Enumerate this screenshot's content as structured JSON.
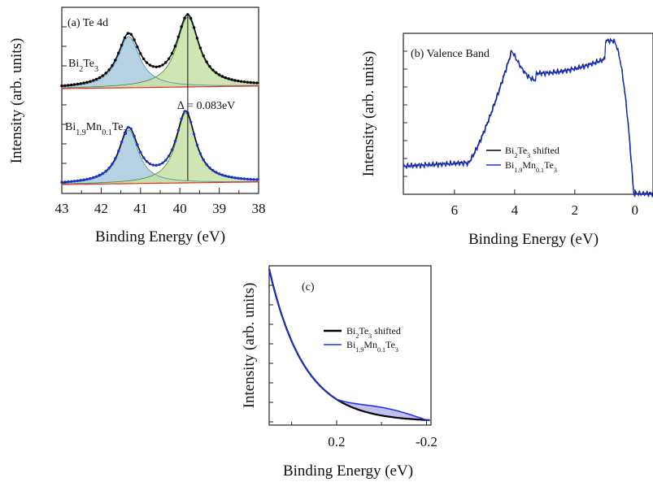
{
  "chart_data": [
    {
      "type": "line",
      "panel_label": "(a) Te 4d",
      "xlabel": "Binding Energy (eV)",
      "ylabel": "Intensity (arb. units)",
      "x_reversed": true,
      "xlim": [
        43,
        38
      ],
      "xticks": [
        "43",
        "42",
        "41",
        "40",
        "39",
        "38"
      ],
      "annotation": "∆ = 0.083eV",
      "series": [
        {
          "name": "Bi2Te3",
          "label_html": "Bi<tspan baseline-shift='sub' font-size='10'>2</tspan>Te<tspan baseline-shift='sub' font-size='10'>3</tspan>",
          "peaks": [
            41.3,
            39.8
          ],
          "color": "#000000"
        },
        {
          "name": "Bi1.9Mn0.1Te3",
          "label_html": "Bi<tspan baseline-shift='sub' font-size='10'>1.9</tspan>Mn<tspan baseline-shift='sub' font-size='10'>0.1</tspan>Te<tspan baseline-shift='sub' font-size='10'>3</tspan>",
          "peaks": [
            41.3,
            39.85
          ],
          "color": "#1a35e0"
        }
      ],
      "fill_colors": [
        "#a9c9dd",
        "#c9e0a5"
      ]
    },
    {
      "type": "line",
      "panel_label": "(b) Valence Band",
      "xlabel": "Binding Energy (eV)",
      "ylabel": "Intensity (arb. units)",
      "x_reversed": true,
      "xlim": [
        7.7,
        -0.6
      ],
      "xticks": [
        "6",
        "4",
        "2",
        "0"
      ],
      "legend": [
        {
          "name": "Bi2Te3 shifted",
          "label_html": "Bi<tspan baseline-shift='sub' font-size='8'>2</tspan>Te<tspan baseline-shift='sub' font-size='8'>3</tspan> shifted",
          "color": "#000000"
        },
        {
          "name": "Bi1.9Mn0.1Te3",
          "label_html": "Bi<tspan baseline-shift='sub' font-size='8'>1.9</tspan>Mn<tspan baseline-shift='sub' font-size='8'>0.1</tspan>Te<tspan baseline-shift='sub' font-size='8'>3</tspan>",
          "color": "#1a35e0"
        }
      ]
    },
    {
      "type": "line",
      "panel_label": "(c)",
      "xlabel": "Binding Energy (eV)",
      "ylabel": "Intensity (arb. units)",
      "x_reversed": true,
      "xlim": [
        0.5,
        -0.22
      ],
      "xticks": [
        "0.2",
        "-0.2"
      ],
      "fill_color": "#b8b4ec",
      "legend": [
        {
          "name": "Bi2Te3 shifted",
          "label_html": "Bi<tspan baseline-shift='sub' font-size='8'>2</tspan>Te<tspan baseline-shift='sub' font-size='8'>3</tspan> shifted",
          "color": "#000000"
        },
        {
          "name": "Bi1.9Mn0.1Te3",
          "label_html": "Bi<tspan baseline-shift='sub' font-size='8'>1.9</tspan>Mn<tspan baseline-shift='sub' font-size='8'>0.1</tspan>Te<tspan baseline-shift='sub' font-size='8'>3</tspan>",
          "color": "#1a35e0"
        }
      ]
    }
  ]
}
